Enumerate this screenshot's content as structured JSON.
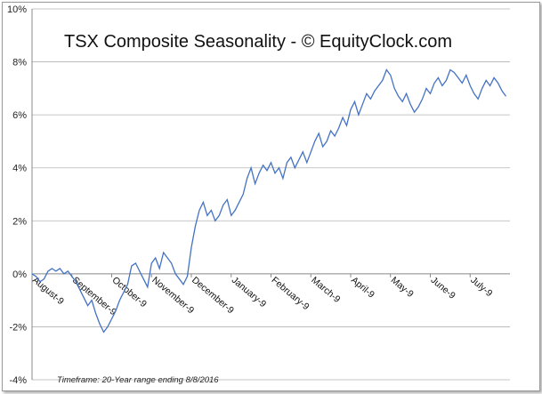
{
  "chart_data": {
    "type": "line",
    "title": "TSX Composite Seasonality - © EquityClock.com",
    "footnote": "Timeframe: 20-Year range ending 8/8/2016",
    "ylim": [
      -4,
      10
    ],
    "yticks": [
      "-4%",
      "-2%",
      "0%",
      "2%",
      "4%",
      "6%",
      "8%",
      "10%"
    ],
    "ytick_values": [
      -4,
      -2,
      0,
      2,
      4,
      6,
      8,
      10
    ],
    "grid": true,
    "legend": "none",
    "line_color": "#4472c4",
    "categories": [
      "August-9",
      "September-9",
      "October-9",
      "November-9",
      "December-9",
      "January-9",
      "February-9",
      "March-9",
      "April-9",
      "May-9",
      "June-9",
      "July-9"
    ],
    "series": [
      {
        "x": [
          0,
          0.1,
          0.2,
          0.3,
          0.4,
          0.5,
          0.6,
          0.7,
          0.8,
          0.9,
          1.0,
          1.1,
          1.2,
          1.3,
          1.4,
          1.5,
          1.6,
          1.7,
          1.8,
          1.9,
          2.0,
          2.1,
          2.2,
          2.3,
          2.4,
          2.5,
          2.6,
          2.7,
          2.8,
          2.9,
          3.0,
          3.1,
          3.2,
          3.3,
          3.4,
          3.5,
          3.6,
          3.7,
          3.8,
          3.9,
          4.0,
          4.1,
          4.2,
          4.3,
          4.4,
          4.5,
          4.6,
          4.7,
          4.8,
          4.9,
          5.0,
          5.1,
          5.2,
          5.3,
          5.4,
          5.5,
          5.6,
          5.7,
          5.8,
          5.9,
          6.0,
          6.1,
          6.2,
          6.3,
          6.4,
          6.5,
          6.6,
          6.7,
          6.8,
          6.9,
          7.0,
          7.1,
          7.2,
          7.3,
          7.4,
          7.5,
          7.6,
          7.7,
          7.8,
          7.9,
          8.0,
          8.1,
          8.2,
          8.3,
          8.4,
          8.5,
          8.6,
          8.7,
          8.8,
          8.9,
          9.0,
          9.1,
          9.2,
          9.3,
          9.4,
          9.5,
          9.6,
          9.7,
          9.8,
          9.9,
          10.0,
          10.1,
          10.2,
          10.3,
          10.4,
          10.5,
          10.6,
          10.7,
          10.8,
          10.9,
          11.0,
          11.1,
          11.2,
          11.3,
          11.4,
          11.5,
          11.6,
          11.7,
          11.8,
          11.9
        ],
        "values": [
          0.0,
          -0.1,
          -0.3,
          -0.2,
          0.1,
          0.2,
          0.1,
          0.2,
          0.0,
          0.1,
          -0.1,
          -0.3,
          -0.6,
          -0.9,
          -1.2,
          -1.0,
          -1.5,
          -1.9,
          -2.2,
          -2.0,
          -1.7,
          -1.4,
          -1.0,
          -0.7,
          -0.4,
          0.3,
          0.4,
          0.1,
          -0.2,
          -0.5,
          0.4,
          0.6,
          0.2,
          0.8,
          0.6,
          0.4,
          0.0,
          -0.2,
          -0.4,
          -0.1,
          1.0,
          1.8,
          2.4,
          2.7,
          2.2,
          2.4,
          2.0,
          2.2,
          2.6,
          2.8,
          2.2,
          2.4,
          2.7,
          3.0,
          3.6,
          4.0,
          3.4,
          3.8,
          4.1,
          3.9,
          4.2,
          3.8,
          4.0,
          3.6,
          4.2,
          4.4,
          4.0,
          4.3,
          4.6,
          4.2,
          4.6,
          5.0,
          5.3,
          4.8,
          5.0,
          5.4,
          5.2,
          5.5,
          5.9,
          5.6,
          6.2,
          6.5,
          6.0,
          6.4,
          6.8,
          6.6,
          6.9,
          7.1,
          7.3,
          7.7,
          7.5,
          7.0,
          6.7,
          6.5,
          6.8,
          6.4,
          6.1,
          6.3,
          6.6,
          7.0,
          6.8,
          7.2,
          7.4,
          7.1,
          7.3,
          7.7,
          7.6,
          7.4,
          7.2,
          7.5,
          7.1,
          6.8,
          6.6,
          7.0,
          7.3,
          7.1,
          7.4,
          7.2,
          6.9,
          6.7
        ]
      }
    ]
  }
}
